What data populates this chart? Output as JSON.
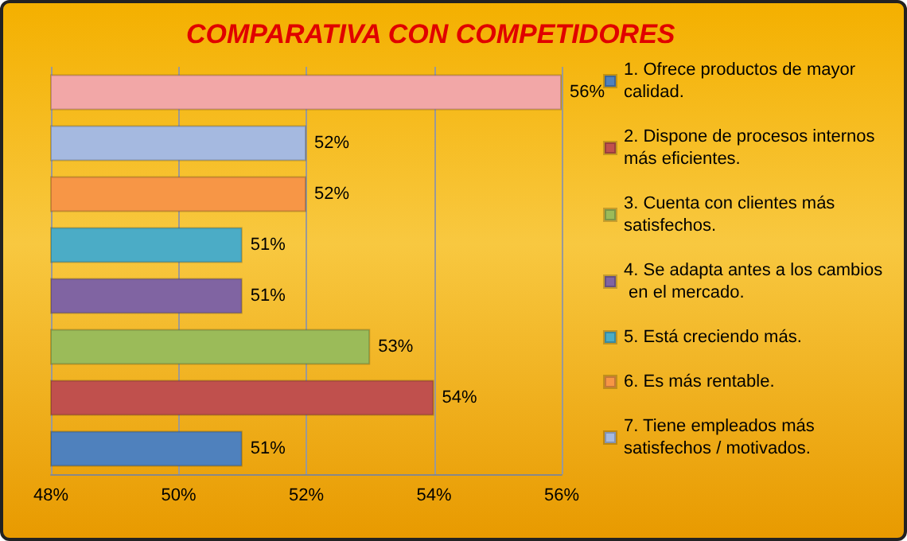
{
  "chart_data": {
    "type": "bar",
    "title": "COMPARATIVA CON COMPETIDORES",
    "orientation": "horizontal",
    "stacked": true,
    "categories": [
      null,
      null,
      null,
      null,
      null,
      null,
      null,
      null
    ],
    "series": [
      {
        "name": "1. Ofrece productos de mayor calidad.",
        "color": "#4f81bd",
        "values": [
          null,
          null,
          null,
          null,
          null,
          null,
          null,
          51
        ],
        "value_labels": [
          null,
          null,
          null,
          null,
          null,
          null,
          null,
          "51%"
        ]
      },
      {
        "name": "2. Dispone de procesos internos más eficientes.",
        "color": "#c0504d",
        "values": [
          null,
          null,
          null,
          null,
          null,
          null,
          54,
          null
        ],
        "value_labels": [
          null,
          null,
          null,
          null,
          null,
          null,
          "54%",
          null
        ]
      },
      {
        "name": "3. Cuenta con clientes más satisfechos.",
        "color": "#9bbb59",
        "values": [
          null,
          null,
          null,
          null,
          null,
          53,
          null,
          null
        ],
        "value_labels": [
          null,
          null,
          null,
          null,
          null,
          "53%",
          null,
          null
        ]
      },
      {
        "name": "4. Se adapta antes a los cambios en el mercado.",
        "color": "#8064a2",
        "values": [
          null,
          null,
          null,
          null,
          51,
          null,
          null,
          null
        ],
        "value_labels": [
          null,
          null,
          null,
          null,
          "51%",
          null,
          null,
          null
        ]
      },
      {
        "name": "5. Está creciendo más.",
        "color": "#4bacc6",
        "values": [
          null,
          null,
          null,
          51,
          null,
          null,
          null,
          null
        ],
        "value_labels": [
          null,
          null,
          null,
          "51%",
          null,
          null,
          null,
          null
        ]
      },
      {
        "name": "6. Es más rentable.",
        "color": "#f79646",
        "values": [
          null,
          null,
          52,
          null,
          null,
          null,
          null,
          null
        ],
        "value_labels": [
          null,
          null,
          "52%",
          null,
          null,
          null,
          null,
          null
        ]
      },
      {
        "name": "7. Tiene empleados más satisfechos / motivados.",
        "color": "#a5b9e0",
        "values": [
          null,
          52,
          null,
          null,
          null,
          null,
          null,
          null
        ],
        "value_labels": [
          null,
          "52%",
          null,
          null,
          null,
          null,
          null,
          null
        ]
      },
      {
        "color": "#f2a7a7",
        "values": [
          56,
          null,
          null,
          null,
          null,
          null,
          null,
          null
        ],
        "value_labels": [
          "56%",
          null,
          null,
          null,
          null,
          null,
          null,
          null
        ]
      }
    ],
    "xlim": [
      48,
      56
    ],
    "xticks": [
      {
        "value": 48,
        "label": "48%"
      },
      {
        "value": 50,
        "label": "50%"
      },
      {
        "value": 52,
        "label": "52%"
      },
      {
        "value": 54,
        "label": "54%"
      },
      {
        "value": 56,
        "label": "56%"
      }
    ],
    "grid": "x",
    "legend": "right"
  }
}
